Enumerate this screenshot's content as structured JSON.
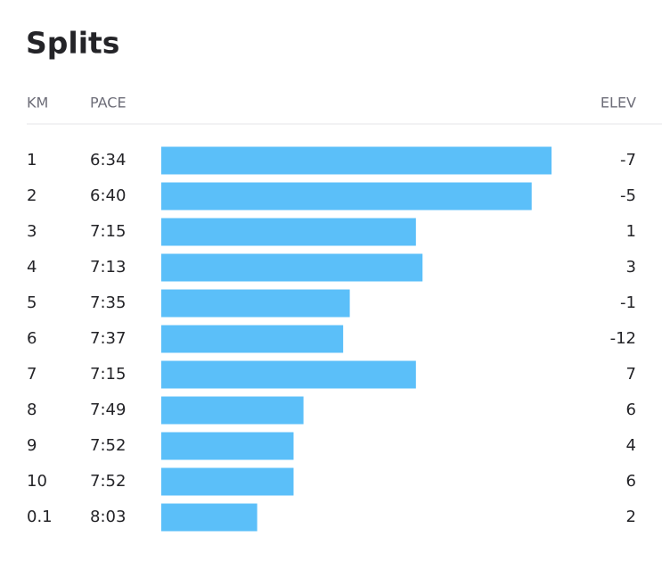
{
  "chart_data": {
    "type": "bar",
    "title": "Splits",
    "headers": [
      "KM",
      "PACE",
      "ELEV"
    ],
    "categories": [
      "1",
      "2",
      "3",
      "4",
      "5",
      "6",
      "7",
      "8",
      "9",
      "10",
      "0.1"
    ],
    "values": [
      394,
      400,
      435,
      433,
      455,
      457,
      435,
      469,
      472,
      472,
      483
    ],
    "value_labels": [
      "6:34",
      "6:40",
      "7:15",
      "7:13",
      "7:35",
      "7:37",
      "7:15",
      "7:49",
      "7:52",
      "7:52",
      "8:03"
    ],
    "elevation": [
      -7,
      -5,
      1,
      3,
      -1,
      -12,
      7,
      6,
      4,
      6,
      2
    ],
    "color": "#5bbff9",
    "xlim": [
      512,
      394
    ]
  }
}
